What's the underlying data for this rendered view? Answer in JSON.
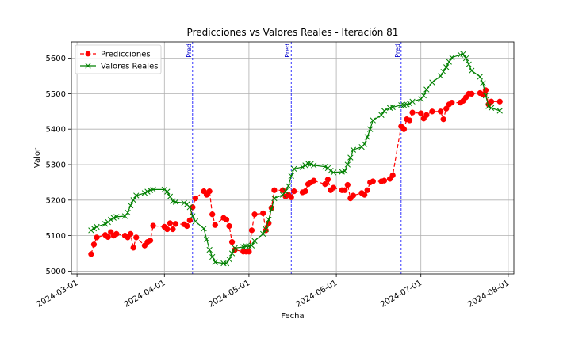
{
  "chart_data": {
    "type": "line",
    "title": "Predicciones vs Valores Reales - Iteración 81",
    "xlabel": "Fecha",
    "ylabel": "Valor",
    "xlim": [
      "2024-02-28",
      "2024-08-03"
    ],
    "ylim": [
      4992,
      5646
    ],
    "x_ticks": [
      "2024-03-01",
      "2024-04-01",
      "2024-05-01",
      "2024-06-01",
      "2024-07-01",
      "2024-08-01"
    ],
    "y_ticks": [
      5000,
      5100,
      5200,
      5300,
      5400,
      5500,
      5600
    ],
    "grid": true,
    "legend_position": "top-left",
    "vertical_markers": [
      {
        "date": "2024-04-11",
        "label": "Pred"
      },
      {
        "date": "2024-05-16",
        "label": "Pred"
      },
      {
        "date": "2024-06-24",
        "label": "Pred"
      }
    ],
    "series": [
      {
        "name": "Predicciones",
        "color": "#ff0000",
        "style": "dashed",
        "marker": "circle",
        "points": [
          [
            "2024-03-06",
            5048
          ],
          [
            "2024-03-07",
            5075
          ],
          [
            "2024-03-08",
            5095
          ],
          [
            "2024-03-11",
            5102
          ],
          [
            "2024-03-12",
            5096
          ],
          [
            "2024-03-13",
            5110
          ],
          [
            "2024-03-14",
            5100
          ],
          [
            "2024-03-15",
            5105
          ],
          [
            "2024-03-18",
            5100
          ],
          [
            "2024-03-19",
            5095
          ],
          [
            "2024-03-20",
            5105
          ],
          [
            "2024-03-21",
            5066
          ],
          [
            "2024-03-22",
            5095
          ],
          [
            "2024-03-25",
            5072
          ],
          [
            "2024-03-26",
            5082
          ],
          [
            "2024-03-27",
            5086
          ],
          [
            "2024-03-28",
            5128
          ],
          [
            "2024-04-01",
            5125
          ],
          [
            "2024-04-02",
            5118
          ],
          [
            "2024-04-03",
            5135
          ],
          [
            "2024-04-04",
            5118
          ],
          [
            "2024-04-05",
            5133
          ],
          [
            "2024-04-08",
            5132
          ],
          [
            "2024-04-09",
            5127
          ],
          [
            "2024-04-10",
            5143
          ],
          [
            "2024-04-11",
            5180
          ],
          [
            "2024-04-12",
            5205
          ],
          [
            "2024-04-15",
            5225
          ],
          [
            "2024-04-16",
            5215
          ],
          [
            "2024-04-17",
            5225
          ],
          [
            "2024-04-18",
            5160
          ],
          [
            "2024-04-19",
            5130
          ],
          [
            "2024-04-22",
            5150
          ],
          [
            "2024-04-23",
            5145
          ],
          [
            "2024-04-24",
            5127
          ],
          [
            "2024-04-25",
            5082
          ],
          [
            "2024-04-26",
            5060
          ],
          [
            "2024-04-29",
            5055
          ],
          [
            "2024-04-30",
            5055
          ],
          [
            "2024-05-01",
            5055
          ],
          [
            "2024-05-02",
            5115
          ],
          [
            "2024-05-03",
            5160
          ],
          [
            "2024-05-06",
            5163
          ],
          [
            "2024-05-07",
            5115
          ],
          [
            "2024-05-08",
            5135
          ],
          [
            "2024-05-09",
            5178
          ],
          [
            "2024-05-10",
            5228
          ],
          [
            "2024-05-13",
            5228
          ],
          [
            "2024-05-14",
            5210
          ],
          [
            "2024-05-15",
            5215
          ],
          [
            "2024-05-16",
            5208
          ],
          [
            "2024-05-17",
            5225
          ],
          [
            "2024-05-20",
            5222
          ],
          [
            "2024-05-21",
            5225
          ],
          [
            "2024-05-22",
            5245
          ],
          [
            "2024-05-23",
            5250
          ],
          [
            "2024-05-24",
            5255
          ],
          [
            "2024-05-28",
            5245
          ],
          [
            "2024-05-29",
            5258
          ],
          [
            "2024-05-30",
            5228
          ],
          [
            "2024-05-31",
            5235
          ],
          [
            "2024-06-03",
            5228
          ],
          [
            "2024-06-04",
            5228
          ],
          [
            "2024-06-05",
            5243
          ],
          [
            "2024-06-06",
            5205
          ],
          [
            "2024-06-07",
            5213
          ],
          [
            "2024-06-10",
            5220
          ],
          [
            "2024-06-11",
            5215
          ],
          [
            "2024-06-12",
            5228
          ],
          [
            "2024-06-13",
            5250
          ],
          [
            "2024-06-14",
            5253
          ],
          [
            "2024-06-17",
            5253
          ],
          [
            "2024-06-18",
            5255
          ],
          [
            "2024-06-20",
            5260
          ],
          [
            "2024-06-21",
            5270
          ],
          [
            "2024-06-24",
            5408
          ],
          [
            "2024-06-25",
            5400
          ],
          [
            "2024-06-26",
            5428
          ],
          [
            "2024-06-27",
            5425
          ],
          [
            "2024-06-28",
            5447
          ],
          [
            "2024-07-01",
            5445
          ],
          [
            "2024-07-02",
            5430
          ],
          [
            "2024-07-03",
            5440
          ],
          [
            "2024-07-05",
            5450
          ],
          [
            "2024-07-08",
            5450
          ],
          [
            "2024-07-09",
            5428
          ],
          [
            "2024-07-10",
            5458
          ],
          [
            "2024-07-11",
            5470
          ],
          [
            "2024-07-12",
            5475
          ],
          [
            "2024-07-15",
            5475
          ],
          [
            "2024-07-16",
            5480
          ],
          [
            "2024-07-17",
            5490
          ],
          [
            "2024-07-18",
            5500
          ],
          [
            "2024-07-19",
            5500
          ],
          [
            "2024-07-22",
            5502
          ],
          [
            "2024-07-23",
            5498
          ],
          [
            "2024-07-24",
            5510
          ],
          [
            "2024-07-25",
            5470
          ],
          [
            "2024-07-26",
            5478
          ],
          [
            "2024-07-29",
            5478
          ]
        ]
      },
      {
        "name": "Valores Reales",
        "color": "#008000",
        "style": "solid",
        "marker": "x",
        "points": [
          [
            "2024-03-06",
            5115
          ],
          [
            "2024-03-07",
            5120
          ],
          [
            "2024-03-08",
            5125
          ],
          [
            "2024-03-11",
            5133
          ],
          [
            "2024-03-12",
            5138
          ],
          [
            "2024-03-13",
            5145
          ],
          [
            "2024-03-14",
            5150
          ],
          [
            "2024-03-15",
            5153
          ],
          [
            "2024-03-18",
            5155
          ],
          [
            "2024-03-19",
            5165
          ],
          [
            "2024-03-20",
            5185
          ],
          [
            "2024-03-21",
            5200
          ],
          [
            "2024-03-22",
            5213
          ],
          [
            "2024-03-25",
            5220
          ],
          [
            "2024-03-26",
            5224
          ],
          [
            "2024-03-27",
            5228
          ],
          [
            "2024-03-28",
            5230
          ],
          [
            "2024-04-01",
            5230
          ],
          [
            "2024-04-02",
            5224
          ],
          [
            "2024-04-03",
            5210
          ],
          [
            "2024-04-04",
            5197
          ],
          [
            "2024-04-05",
            5195
          ],
          [
            "2024-04-08",
            5192
          ],
          [
            "2024-04-09",
            5188
          ],
          [
            "2024-04-10",
            5180
          ],
          [
            "2024-04-11",
            5155
          ],
          [
            "2024-04-12",
            5140
          ],
          [
            "2024-04-15",
            5120
          ],
          [
            "2024-04-16",
            5090
          ],
          [
            "2024-04-17",
            5060
          ],
          [
            "2024-04-18",
            5040
          ],
          [
            "2024-04-19",
            5025
          ],
          [
            "2024-04-22",
            5022
          ],
          [
            "2024-04-23",
            5022
          ],
          [
            "2024-04-24",
            5033
          ],
          [
            "2024-04-25",
            5050
          ],
          [
            "2024-04-26",
            5065
          ],
          [
            "2024-04-29",
            5068
          ],
          [
            "2024-04-30",
            5070
          ],
          [
            "2024-05-01",
            5070
          ],
          [
            "2024-05-02",
            5072
          ],
          [
            "2024-05-03",
            5085
          ],
          [
            "2024-05-06",
            5105
          ],
          [
            "2024-05-07",
            5118
          ],
          [
            "2024-05-08",
            5145
          ],
          [
            "2024-05-09",
            5175
          ],
          [
            "2024-05-10",
            5205
          ],
          [
            "2024-05-13",
            5215
          ],
          [
            "2024-05-14",
            5225
          ],
          [
            "2024-05-15",
            5240
          ],
          [
            "2024-05-16",
            5268
          ],
          [
            "2024-05-17",
            5288
          ],
          [
            "2024-05-20",
            5293
          ],
          [
            "2024-05-21",
            5298
          ],
          [
            "2024-05-22",
            5303
          ],
          [
            "2024-05-23",
            5302
          ],
          [
            "2024-05-24",
            5298
          ],
          [
            "2024-05-28",
            5294
          ],
          [
            "2024-05-29",
            5290
          ],
          [
            "2024-05-30",
            5283
          ],
          [
            "2024-05-31",
            5278
          ],
          [
            "2024-06-03",
            5280
          ],
          [
            "2024-06-04",
            5282
          ],
          [
            "2024-06-05",
            5300
          ],
          [
            "2024-06-06",
            5320
          ],
          [
            "2024-06-07",
            5342
          ],
          [
            "2024-06-10",
            5350
          ],
          [
            "2024-06-11",
            5358
          ],
          [
            "2024-06-12",
            5378
          ],
          [
            "2024-06-13",
            5400
          ],
          [
            "2024-06-14",
            5425
          ],
          [
            "2024-06-17",
            5440
          ],
          [
            "2024-06-18",
            5452
          ],
          [
            "2024-06-20",
            5460
          ],
          [
            "2024-06-21",
            5462
          ],
          [
            "2024-06-24",
            5468
          ],
          [
            "2024-06-25",
            5468
          ],
          [
            "2024-06-26",
            5470
          ],
          [
            "2024-06-27",
            5472
          ],
          [
            "2024-06-28",
            5478
          ],
          [
            "2024-07-01",
            5485
          ],
          [
            "2024-07-02",
            5495
          ],
          [
            "2024-07-03",
            5512
          ],
          [
            "2024-07-05",
            5532
          ],
          [
            "2024-07-08",
            5550
          ],
          [
            "2024-07-09",
            5562
          ],
          [
            "2024-07-10",
            5575
          ],
          [
            "2024-07-11",
            5590
          ],
          [
            "2024-07-12",
            5602
          ],
          [
            "2024-07-15",
            5610
          ],
          [
            "2024-07-16",
            5612
          ],
          [
            "2024-07-17",
            5600
          ],
          [
            "2024-07-18",
            5583
          ],
          [
            "2024-07-19",
            5565
          ],
          [
            "2024-07-22",
            5548
          ],
          [
            "2024-07-23",
            5530
          ],
          [
            "2024-07-24",
            5495
          ],
          [
            "2024-07-25",
            5465
          ],
          [
            "2024-07-26",
            5460
          ],
          [
            "2024-07-29",
            5452
          ]
        ]
      }
    ]
  }
}
